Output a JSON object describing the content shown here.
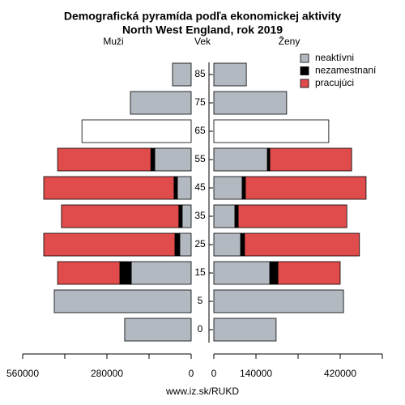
{
  "chart_data": {
    "type": "pyramid",
    "title": "Demografická pyramída podľa ekonomickej aktivity",
    "subtitle": "North West England, rok 2019",
    "left_label": "Muži",
    "center_label": "Vek",
    "right_label": "Ženy",
    "categories": [
      85,
      75,
      65,
      55,
      45,
      35,
      25,
      15,
      5,
      0
    ],
    "series": [
      {
        "name": "neaktívni",
        "color": "#b2b9c1",
        "male": [
          62000,
          202000,
          null,
          121000,
          46000,
          30000,
          38000,
          199000,
          455000,
          221000
        ],
        "female": [
          108000,
          242000,
          null,
          178000,
          94000,
          70000,
          89000,
          186000,
          431000,
          207000
        ]
      },
      {
        "name": "nezamestnaní",
        "color": "#000000",
        "male": [
          null,
          null,
          null,
          13000,
          11000,
          11000,
          16000,
          38000,
          null,
          null
        ],
        "female": [
          null,
          null,
          null,
          8000,
          11000,
          11000,
          13000,
          27000,
          null,
          null
        ]
      },
      {
        "name": "pracujúci",
        "color": "#e04b4b",
        "male": [
          null,
          null,
          null,
          310000,
          433000,
          390000,
          436000,
          207000,
          null,
          null
        ],
        "female": [
          null,
          null,
          null,
          272000,
          401000,
          361000,
          382000,
          207000,
          null,
          null
        ]
      },
      {
        "name": null,
        "color": "#ffffff",
        "male": [
          null,
          null,
          363000,
          null,
          null,
          null,
          null,
          null,
          null,
          null
        ],
        "female": [
          null,
          null,
          382000,
          null,
          null,
          null,
          null,
          null,
          null,
          null
        ]
      }
    ],
    "xlim": [
      0,
      560000
    ],
    "xticks_left": [
      560000,
      {
        "value": 420000,
        "label": null
      },
      280000,
      {
        "value": 140000,
        "label": null
      },
      0
    ],
    "xticks_right": [
      0,
      140000,
      {
        "value": 280000,
        "label": null
      },
      420000,
      {
        "value": 560000,
        "label": null
      }
    ],
    "source": "www.iz.sk/RUKD"
  }
}
